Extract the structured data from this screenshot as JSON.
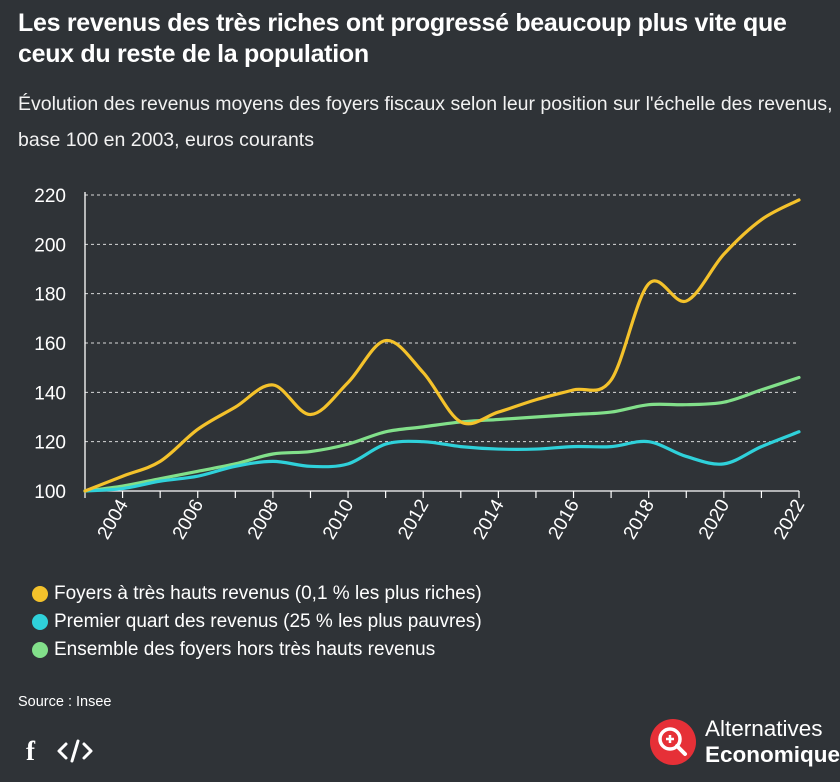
{
  "header": {
    "title": "Les revenus des très riches ont progressé beaucoup plus vite que ceux du reste de la population",
    "subtitle": "Évolution des revenus moyens des foyers fiscaux selon leur position sur l'échelle des revenus, base 100 en 2003, euros courants"
  },
  "chart_data": {
    "type": "line",
    "title": "Les revenus des très riches ont progressé beaucoup plus vite que ceux du reste de la population",
    "subtitle": "Évolution des revenus moyens des foyers fiscaux selon leur position sur l'échelle des revenus, base 100 en 2003, euros courants",
    "xlabel": "",
    "ylabel": "",
    "x": [
      2003,
      2004,
      2005,
      2006,
      2007,
      2008,
      2009,
      2010,
      2011,
      2012,
      2013,
      2014,
      2015,
      2016,
      2017,
      2018,
      2019,
      2020,
      2021,
      2022
    ],
    "xlim": [
      2003,
      2022
    ],
    "ylim": [
      100,
      220
    ],
    "x_ticks": [
      2004,
      2006,
      2008,
      2010,
      2012,
      2014,
      2016,
      2018,
      2020,
      2022
    ],
    "y_ticks": [
      100,
      120,
      140,
      160,
      180,
      200,
      220
    ],
    "grid": "horizontal dashed",
    "legend": "bottom",
    "series": [
      {
        "name": "Foyers à très hauts revenus (0,1 % les plus riches)",
        "color": "#f4c22b",
        "values": [
          100,
          106,
          112,
          125,
          134,
          143,
          131,
          144,
          161,
          148,
          128,
          132,
          137,
          141,
          145,
          184,
          177,
          196,
          210,
          218
        ]
      },
      {
        "name": "Premier quart des revenus (25 % les plus pauvres)",
        "color": "#2fd1da",
        "values": [
          100,
          101,
          104,
          106,
          110,
          112,
          110,
          111,
          119,
          120,
          118,
          117,
          117,
          118,
          118,
          120,
          114,
          111,
          118,
          124
        ]
      },
      {
        "name": "Ensemble des foyers hors très hauts revenus",
        "color": "#82e08a",
        "values": [
          100,
          102,
          105,
          108,
          111,
          115,
          116,
          119,
          124,
          126,
          128,
          129,
          130,
          131,
          132,
          135,
          135,
          136,
          141,
          146
        ]
      }
    ]
  },
  "footer": {
    "source": "Source : Insee",
    "facebook_icon": "facebook-icon",
    "embed_icon": "embed-code-icon",
    "logo_line1": "Alternatives",
    "logo_line2": "Economiques",
    "logo_color": "#e63037"
  }
}
